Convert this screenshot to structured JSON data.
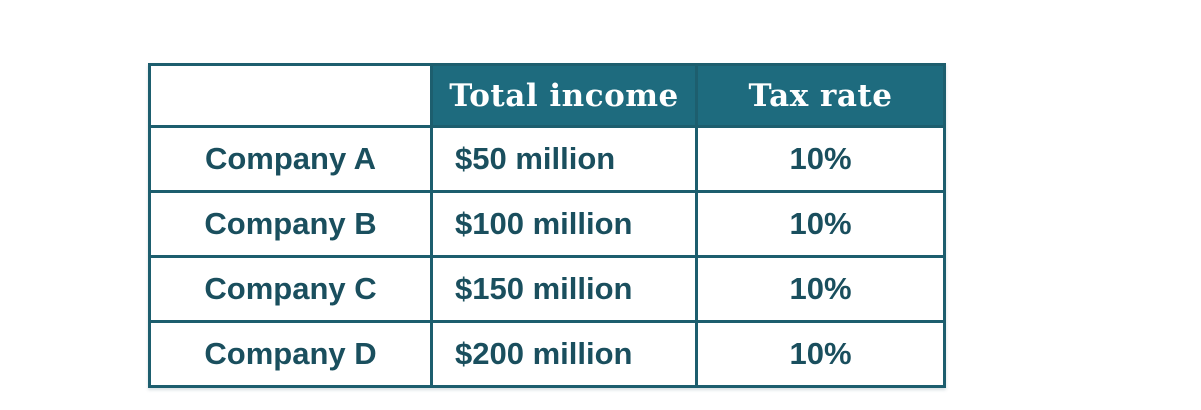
{
  "chart_data": {
    "type": "table",
    "title": "",
    "columns": [
      "",
      "Total income",
      "Tax rate"
    ],
    "rows": [
      [
        "Company A",
        "$50 million",
        "10%"
      ],
      [
        "Company B",
        "$100 million",
        "10%"
      ],
      [
        "Company C",
        "$150 million",
        "10%"
      ],
      [
        "Company D",
        "$200 million",
        "10%"
      ]
    ],
    "income_millions": [
      50,
      100,
      150,
      200
    ],
    "tax_rate_percent": [
      10,
      10,
      10,
      10
    ],
    "legend_position": "none",
    "grid": false
  },
  "colors": {
    "header_background": "#1e6b7e",
    "header_text": "#ffffff",
    "border": "#1d5e6e",
    "body_text": "#1a4f5e",
    "page_background": "#ffffff"
  }
}
